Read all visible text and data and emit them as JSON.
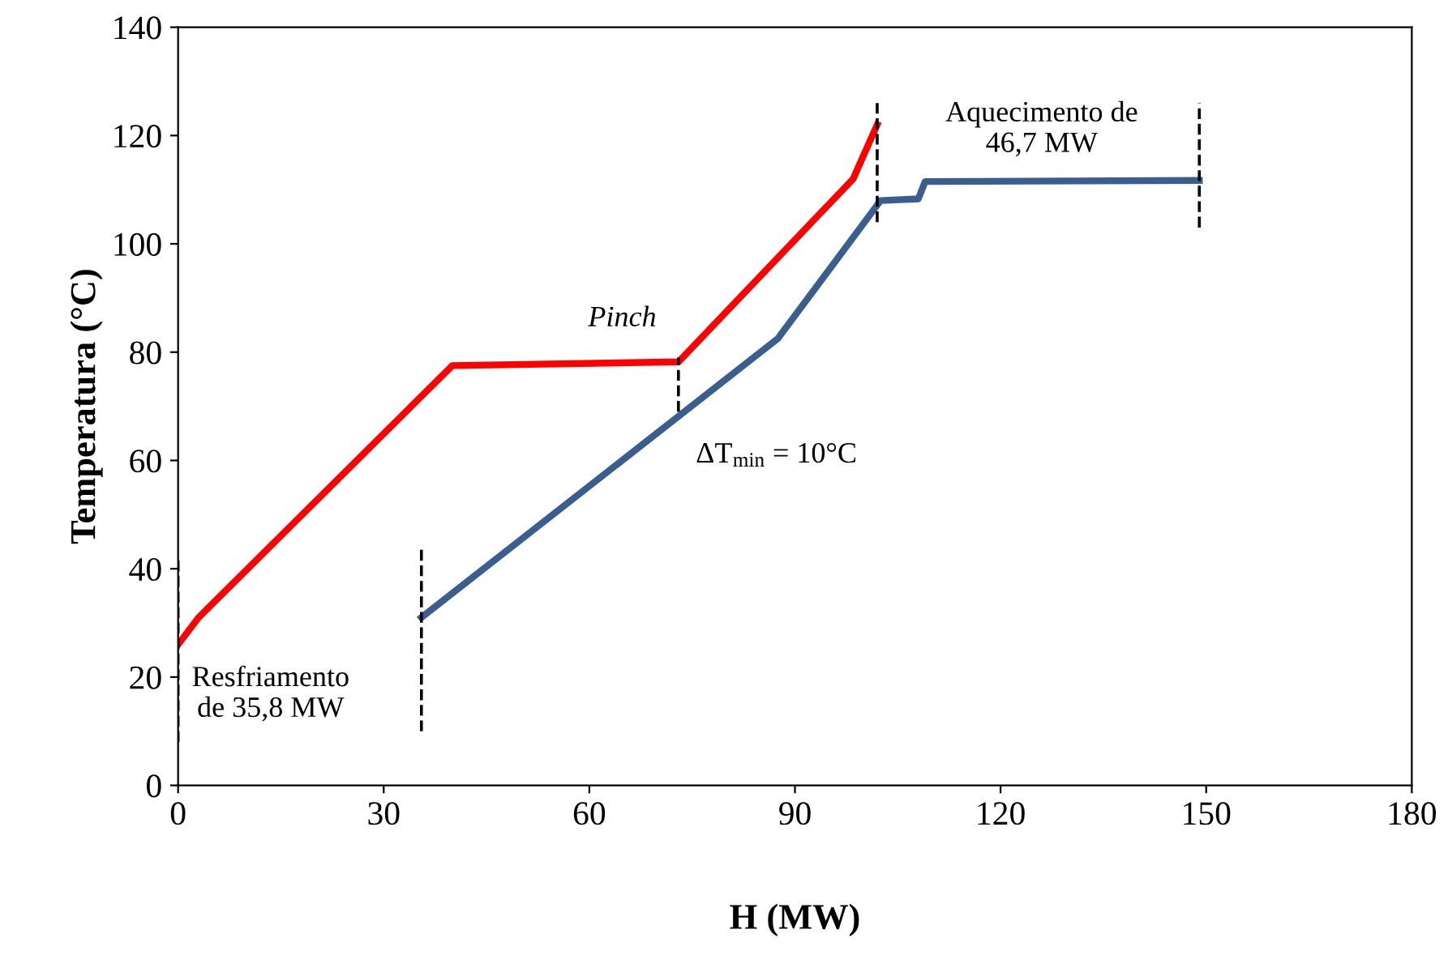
{
  "chart_data": {
    "type": "line",
    "xlabel": "H (MW)",
    "ylabel": "Temperatura (°C)",
    "xlim": [
      0,
      180
    ],
    "xticks": [
      0,
      30,
      60,
      90,
      120,
      150,
      180
    ],
    "ylim": [
      0,
      140
    ],
    "yticks": [
      0,
      20,
      40,
      60,
      80,
      100,
      120,
      140
    ],
    "grid": false,
    "legend": false,
    "marker": "none",
    "line_style": "solid",
    "series": [
      {
        "color": "#ff0000",
        "x": [
          0,
          3,
          40,
          73,
          98.5,
          102
        ],
        "values": [
          26,
          31,
          77.5,
          78.2,
          112,
          122
        ]
      },
      {
        "color": "#3a5f8f",
        "x": [
          35.5,
          87.5,
          102.5,
          108,
          109,
          149
        ],
        "values": [
          31,
          82.5,
          108,
          108.3,
          111.5,
          111.7
        ]
      },
      {
        "color": "#000000",
        "line_style": "dashed",
        "x": [
          0,
          0
        ],
        "values": [
          8,
          42
        ]
      },
      {
        "color": "#000000",
        "line_style": "dashed",
        "x": [
          35.5,
          35.5
        ],
        "values": [
          10,
          44
        ]
      },
      {
        "color": "#000000",
        "line_style": "dashed",
        "x": [
          73,
          73
        ],
        "values": [
          69,
          79
        ]
      },
      {
        "color": "#000000",
        "line_style": "dashed",
        "x": [
          102,
          102
        ],
        "values": [
          104,
          126
        ]
      },
      {
        "color": "#000000",
        "line_style": "dashed",
        "x": [
          149,
          149
        ],
        "values": [
          103,
          126
        ]
      }
    ],
    "annotations": [
      "Resfriamento\nde 35,8 MW",
      "Aquecimento de\n46,7 MW",
      "Pinch",
      "ΔT$_{min}$ = 10°C"
    ]
  }
}
